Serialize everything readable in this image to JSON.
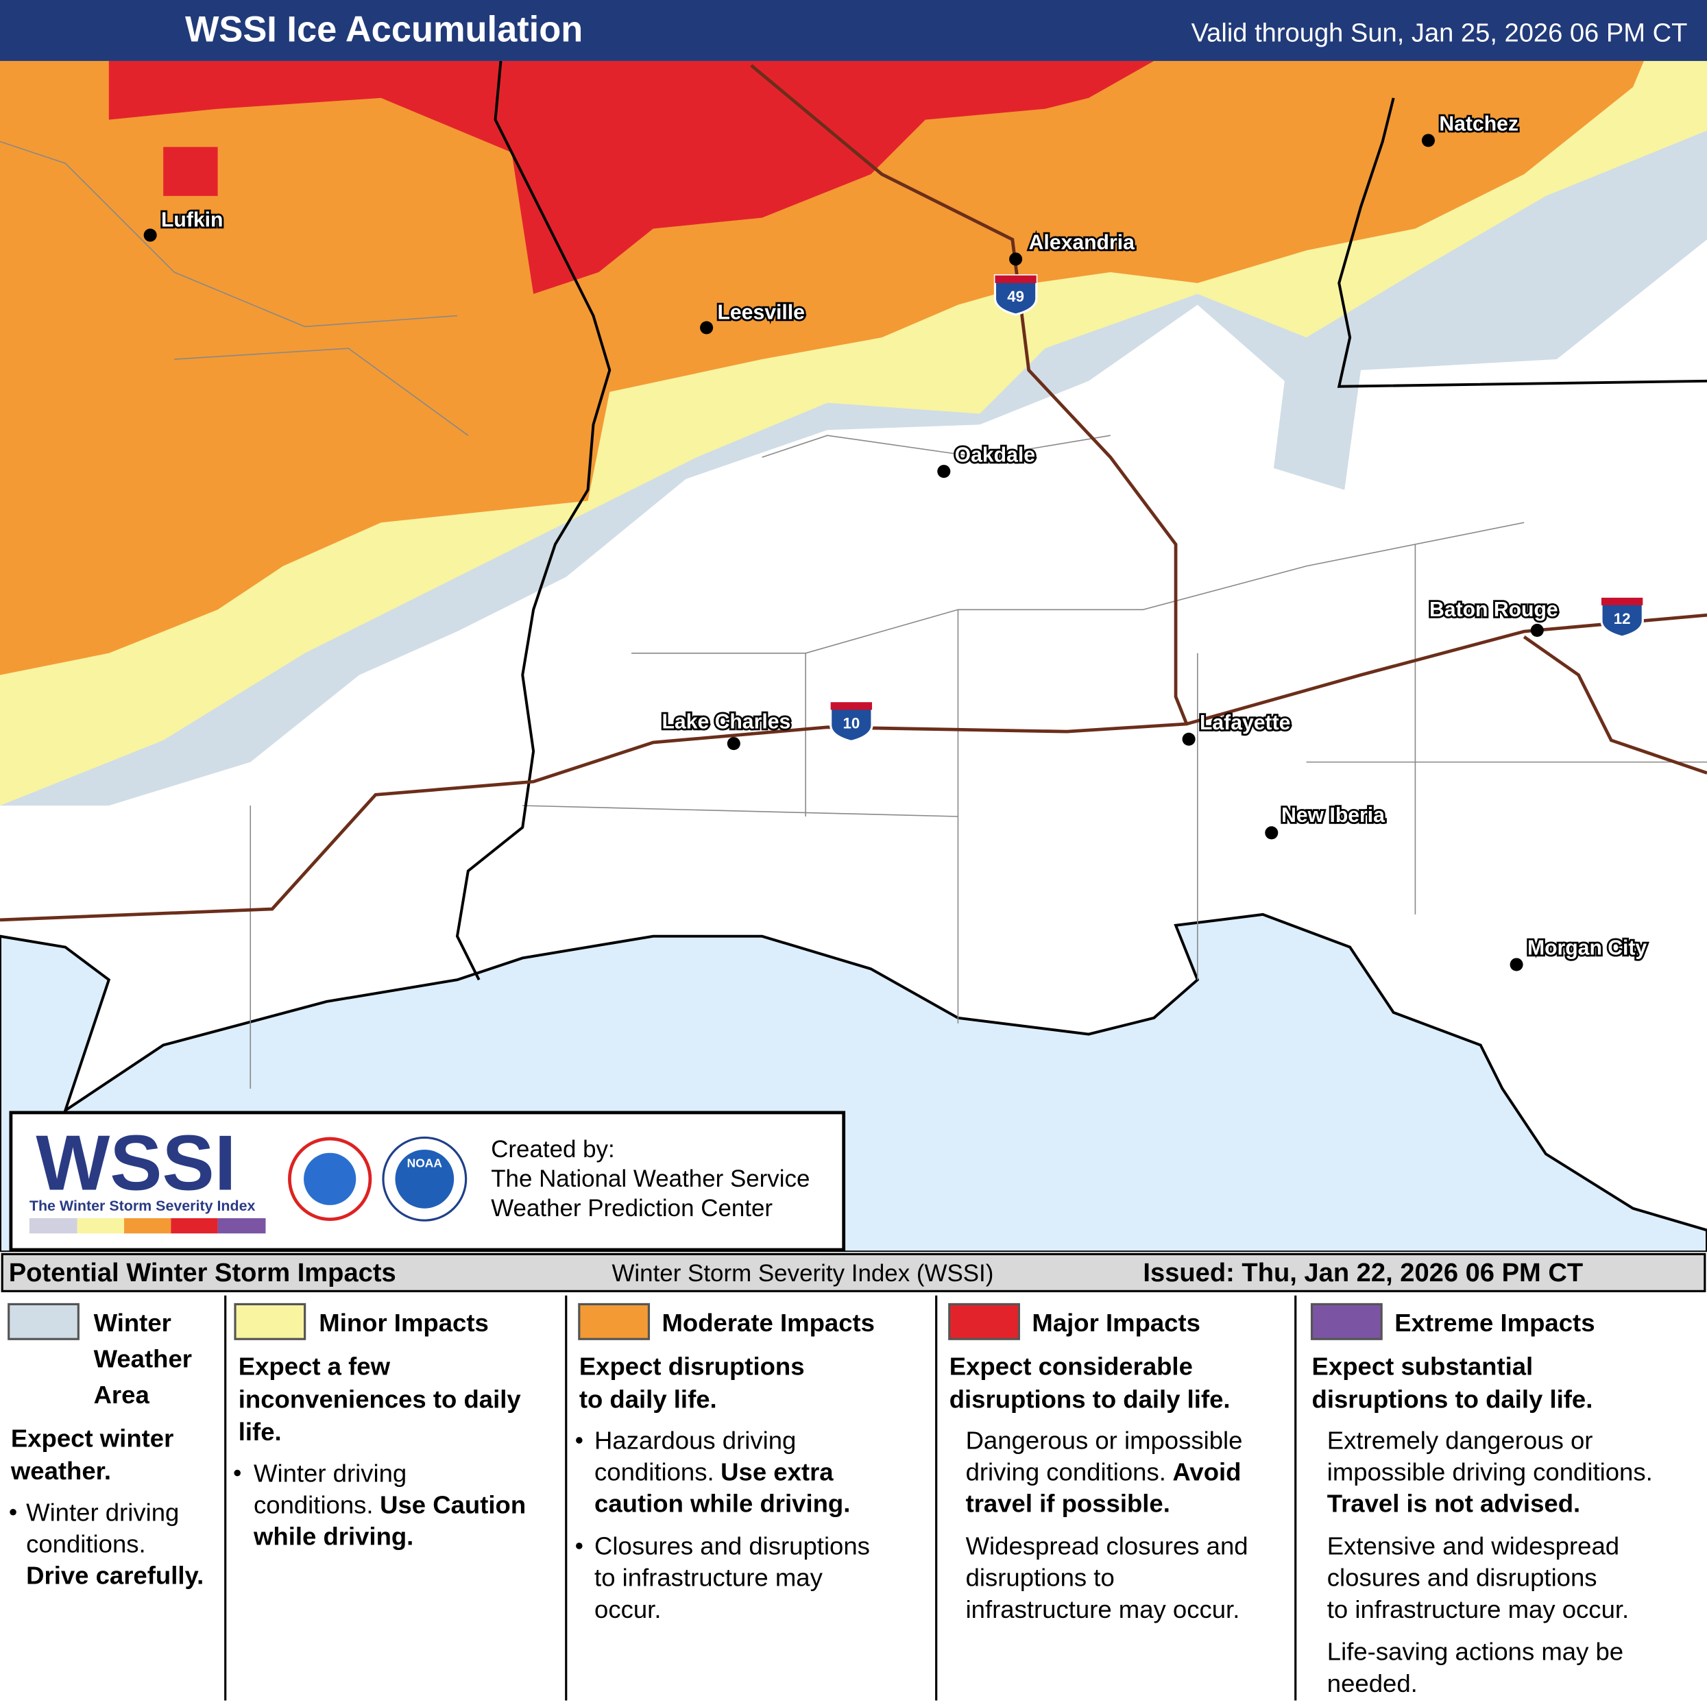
{
  "header": {
    "title": "WSSI Ice Accumulation",
    "valid": "Valid through Sun, Jan 25, 2026 06 PM CT"
  },
  "cities": [
    "Lufkin",
    "Alexandria",
    "Natchez",
    "Leesville",
    "Oakdale",
    "Baton Rouge",
    "Lake Charles",
    "Lafayette",
    "New Iberia",
    "Morgan City"
  ],
  "shields": [
    "49",
    "10",
    "12"
  ],
  "logo": {
    "acronym": "WSSI",
    "tagline": "The Winter Storm Severity Index",
    "agency": "NOAA",
    "credits": [
      "Created by:",
      "The National Weather Service",
      "Weather Prediction Center"
    ]
  },
  "legend": {
    "heading": "Potential Winter Storm Impacts",
    "index": "Winter Storm Severity Index (WSSI)",
    "issued": "Issued: Thu, Jan 22, 2026 06 PM CT",
    "items": [
      {
        "title": [
          "Winter",
          "Weather",
          "Area"
        ],
        "color": "#d0dde6",
        "bullets": true,
        "headline": [
          "Expect winter",
          "weather."
        ],
        "details": [
          [
            "Winter driving",
            "conditions.",
            {
              "bold": "Drive carefully."
            }
          ]
        ]
      },
      {
        "title": [
          "Minor Impacts"
        ],
        "color": "#f8f4a0",
        "bullets": true,
        "headline": [
          "Expect a few",
          "inconveniences to daily",
          "life."
        ],
        "details": [
          [
            "Winter driving",
            {
              "text": "conditions.",
              "bold": "Use Caution"
            },
            {
              "bold": "while driving."
            }
          ]
        ]
      },
      {
        "title": [
          "Moderate Impacts"
        ],
        "color": "#f39a35",
        "bullets": true,
        "headline": [
          "Expect disruptions",
          "to daily life."
        ],
        "details": [
          [
            "Hazardous driving",
            {
              "text": "conditions.",
              "bold": "Use extra"
            },
            {
              "bold": "caution while driving."
            }
          ],
          [
            "Closures and disruptions",
            "to infrastructure may",
            "occur."
          ]
        ]
      },
      {
        "title": [
          "Major Impacts"
        ],
        "color": "#e3232b",
        "bullets": false,
        "headline": [
          "Expect considerable",
          "disruptions to daily life."
        ],
        "details": [
          [
            "Dangerous or impossible",
            {
              "text": "driving conditions.",
              "bold": "Avoid"
            },
            {
              "bold": "travel if possible."
            }
          ],
          [
            "Widespread closures and",
            "disruptions to",
            "infrastructure may occur."
          ]
        ]
      },
      {
        "title": [
          "Extreme Impacts"
        ],
        "color": "#7b55a3",
        "bullets": false,
        "headline": [
          "Expect substantial",
          "disruptions to daily life."
        ],
        "details": [
          [
            "Extremely dangerous or",
            "impossible driving conditions.",
            {
              "bold": "Travel is not advised."
            }
          ],
          [
            "Extensive and widespread",
            "closures and disruptions",
            "to infrastructure may occur."
          ],
          [
            "Life-saving actions may be",
            "needed."
          ]
        ]
      }
    ]
  }
}
